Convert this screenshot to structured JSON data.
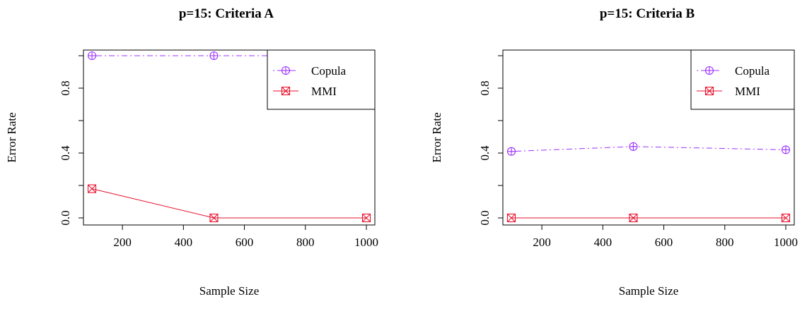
{
  "chart_data": [
    {
      "type": "line",
      "title": "p=15: Criteria A",
      "xlabel": "Sample Size",
      "ylabel": "Error Rate",
      "x": [
        100,
        500,
        1000
      ],
      "xlim": [
        100,
        1000
      ],
      "ylim": [
        0,
        1
      ],
      "xticks": [
        200,
        400,
        600,
        800,
        1000
      ],
      "xtick_labels": [
        "200",
        "400",
        "600",
        "800",
        "1000"
      ],
      "yticks": [
        0.0,
        0.4,
        0.8
      ],
      "ytick_labels": [
        "0.0",
        "0.4",
        "0.8"
      ],
      "legend_position": "top-right",
      "grid": false,
      "series": [
        {
          "name": "Copula",
          "values": [
            1.0,
            1.0,
            1.0
          ],
          "color": "#9b30ff",
          "line_style": "dot-dash",
          "marker": "circle-plus"
        },
        {
          "name": "MMI",
          "values": [
            0.18,
            0.0,
            0.0
          ],
          "color": "#e8112d",
          "line_style": "solid",
          "marker": "square-x"
        }
      ]
    },
    {
      "type": "line",
      "title": "p=15: Criteria B",
      "xlabel": "Sample Size",
      "ylabel": "Error Rate",
      "x": [
        100,
        500,
        1000
      ],
      "xlim": [
        100,
        1000
      ],
      "ylim": [
        0,
        1
      ],
      "xticks": [
        200,
        400,
        600,
        800,
        1000
      ],
      "xtick_labels": [
        "200",
        "400",
        "600",
        "800",
        "1000"
      ],
      "yticks": [
        0.0,
        0.4,
        0.8
      ],
      "ytick_labels": [
        "0.0",
        "0.4",
        "0.8"
      ],
      "legend_position": "top-right",
      "grid": false,
      "series": [
        {
          "name": "Copula",
          "values": [
            0.41,
            0.44,
            0.42
          ],
          "color": "#9b30ff",
          "line_style": "dot-dash",
          "marker": "circle-plus"
        },
        {
          "name": "MMI",
          "values": [
            0.0,
            0.0,
            0.0
          ],
          "color": "#e8112d",
          "line_style": "solid",
          "marker": "square-x"
        }
      ]
    }
  ]
}
